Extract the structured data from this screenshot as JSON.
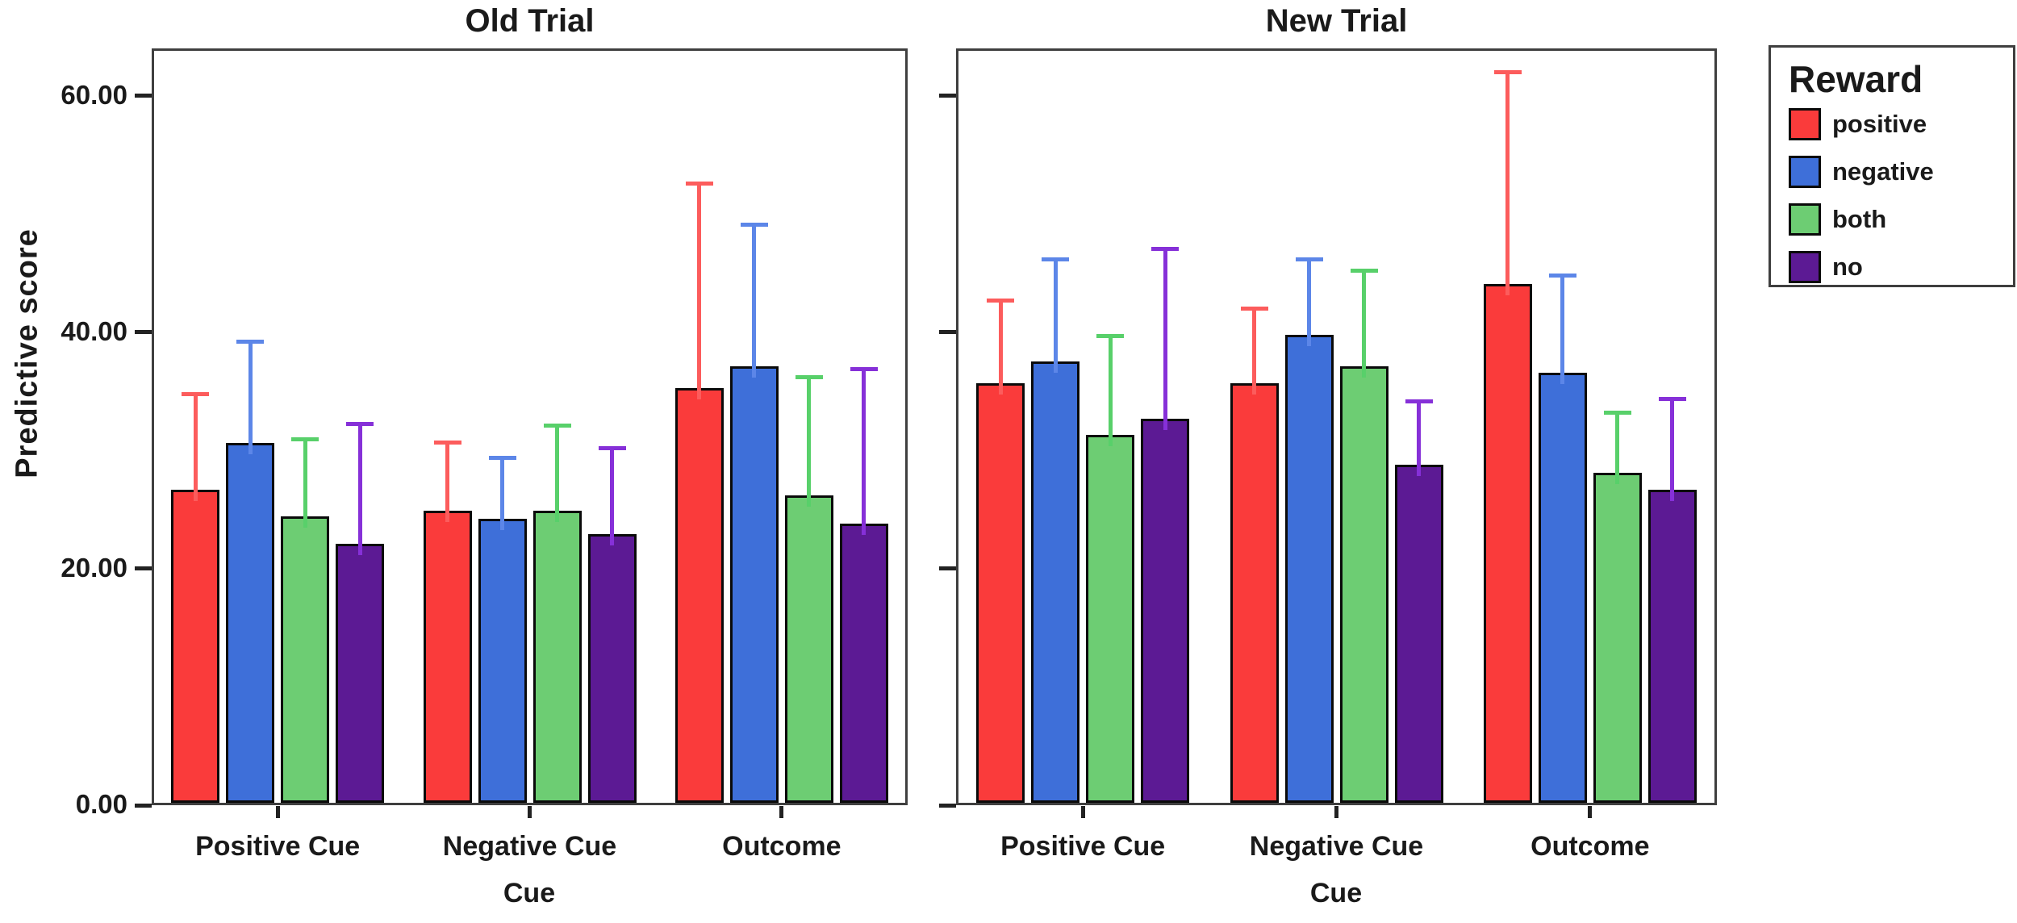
{
  "figure": {
    "y_axis_label": "Predictive score",
    "x_axis_label": "Cue",
    "y_ticks": [
      {
        "value": 0,
        "label": "0.00"
      },
      {
        "value": 20,
        "label": "20.00"
      },
      {
        "value": 40,
        "label": "40.00"
      },
      {
        "value": 60,
        "label": "60.00"
      }
    ]
  },
  "legend": {
    "title": "Reward",
    "items": [
      {
        "label": "positive",
        "color": "#fa3b3b"
      },
      {
        "label": "negative",
        "color": "#3e6fd9"
      },
      {
        "label": "both",
        "color": "#6dcd73"
      },
      {
        "label": "no",
        "color": "#5c1a94"
      }
    ]
  },
  "chart_data": [
    {
      "type": "bar",
      "title": "Old Trial",
      "xlabel": "Cue",
      "ylabel": "Predictive score",
      "categories": [
        "Positive Cue",
        "Negative Cue",
        "Outcome"
      ],
      "ylim": [
        0,
        64
      ],
      "yticks": [
        0,
        20,
        40,
        60
      ],
      "grid": false,
      "series": [
        {
          "name": "positive",
          "color": "#fa3b3b",
          "error_color": "#fc5c5c",
          "values": [
            26.5,
            24.7,
            35.1
          ],
          "error_upper": [
            8.1,
            5.8,
            17.3
          ]
        },
        {
          "name": "negative",
          "color": "#3e6fd9",
          "error_color": "#5c86e8",
          "values": [
            30.4,
            24.0,
            36.9
          ],
          "error_upper": [
            8.6,
            5.2,
            12.0
          ]
        },
        {
          "name": "both",
          "color": "#6dcd73",
          "error_color": "#58d06a",
          "values": [
            24.2,
            24.7,
            26.0
          ],
          "error_upper": [
            6.6,
            7.2,
            10.0
          ]
        },
        {
          "name": "no",
          "color": "#5c1a94",
          "error_color": "#8630d8",
          "values": [
            21.9,
            22.7,
            23.6
          ],
          "error_upper": [
            10.2,
            7.3,
            13.1
          ]
        }
      ]
    },
    {
      "type": "bar",
      "title": "New Trial",
      "xlabel": "Cue",
      "ylabel": "Predictive score",
      "categories": [
        "Positive Cue",
        "Negative Cue",
        "Outcome"
      ],
      "ylim": [
        0,
        64
      ],
      "yticks": [
        0,
        20,
        40,
        60
      ],
      "grid": false,
      "series": [
        {
          "name": "positive",
          "color": "#fa3b3b",
          "error_color": "#fc5c5c",
          "values": [
            35.5,
            35.5,
            43.9
          ],
          "error_upper": [
            7.0,
            6.3,
            17.9
          ]
        },
        {
          "name": "negative",
          "color": "#3e6fd9",
          "error_color": "#5c86e8",
          "values": [
            37.3,
            39.6,
            36.4
          ],
          "error_upper": [
            8.7,
            6.4,
            8.2
          ]
        },
        {
          "name": "both",
          "color": "#6dcd73",
          "error_color": "#58d06a",
          "values": [
            31.1,
            36.9,
            27.9
          ],
          "error_upper": [
            8.4,
            8.1,
            5.1
          ]
        },
        {
          "name": "no",
          "color": "#5c1a94",
          "error_color": "#8630d8",
          "values": [
            32.5,
            28.6,
            26.5
          ],
          "error_upper": [
            14.4,
            5.4,
            7.7
          ]
        }
      ]
    }
  ]
}
